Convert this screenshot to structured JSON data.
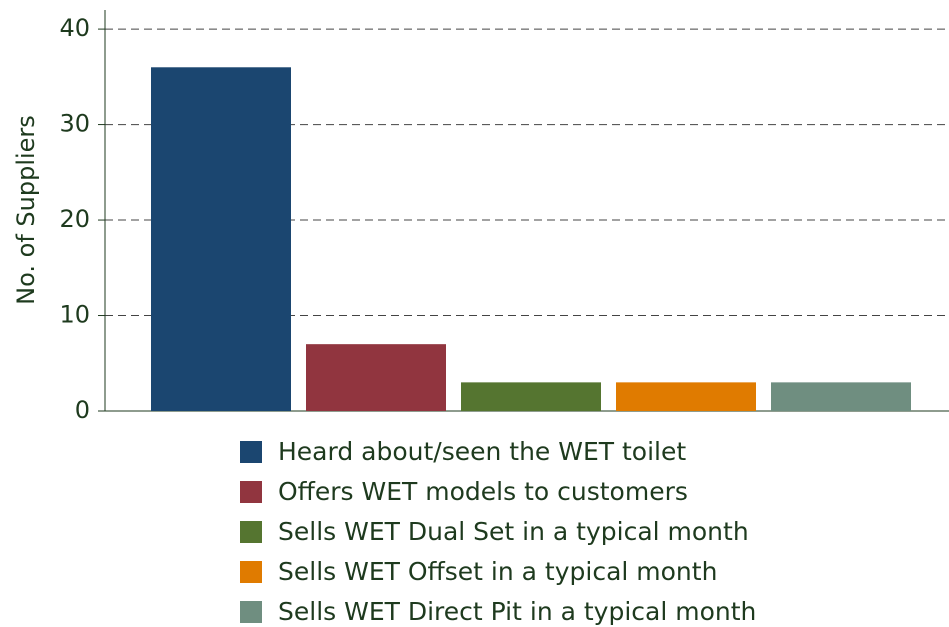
{
  "chart_data": {
    "type": "bar",
    "ylabel": "No. of Suppliers",
    "categories": [
      null
    ],
    "series": [
      {
        "name": "Heard about/seen the WET toilet",
        "color": "#1b4670",
        "values": [
          36
        ]
      },
      {
        "name": "Offers WET models to customers",
        "color": "#91353f",
        "values": [
          7
        ]
      },
      {
        "name": "Sells WET Dual Set in a typical month",
        "color": "#557530",
        "values": [
          3
        ]
      },
      {
        "name": "Sells WET Offset in a typical month",
        "color": "#e07b00",
        "values": [
          3
        ]
      },
      {
        "name": "Sells WET Direct Pit in a typical month",
        "color": "#6f8e80",
        "values": [
          3
        ]
      }
    ],
    "ylim": [
      0,
      42
    ],
    "yticks": [
      0,
      10,
      20,
      30,
      40
    ],
    "grid": true,
    "legend": "bottom"
  }
}
